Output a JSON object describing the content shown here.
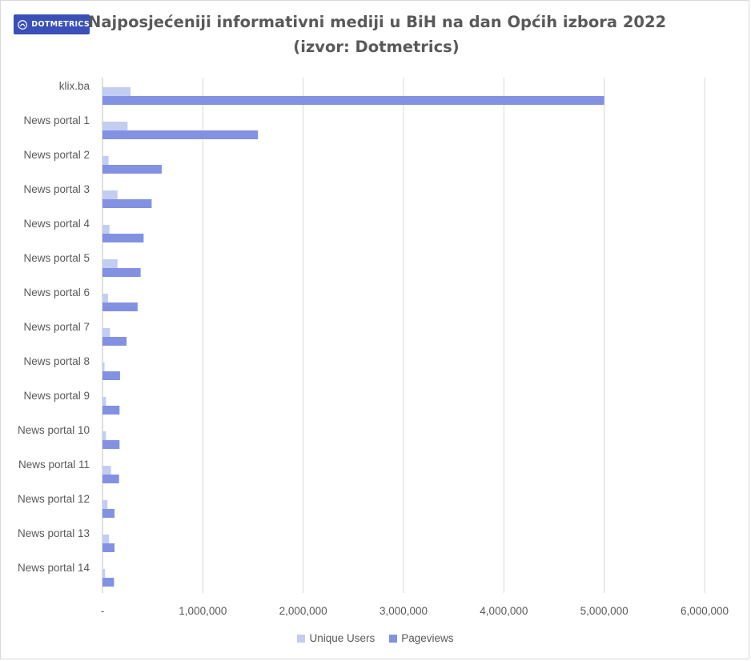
{
  "brand": {
    "logo_text": "DOTMETRICS"
  },
  "chart_data": {
    "type": "bar",
    "orientation": "horizontal",
    "title": "Najposjećeniji informativni mediji u BiH na dan Općih izbora 2022",
    "subtitle": "(izvor: Dotmetrics)",
    "categories": [
      "klix.ba",
      "News portal 1",
      "News portal 2",
      "News portal 3",
      "News portal 4",
      "News portal 5",
      "News portal 6",
      "News portal 7",
      "News portal 8",
      "News portal 9",
      "News portal 10",
      "News portal 11",
      "News portal 12",
      "News portal 13",
      "News portal 14"
    ],
    "series": [
      {
        "name": "Unique Users",
        "color": "#c3cdf2",
        "values": [
          280000,
          250000,
          60000,
          150000,
          70000,
          150000,
          55000,
          75000,
          20000,
          35000,
          35000,
          85000,
          50000,
          65000,
          25000
        ]
      },
      {
        "name": "Pageviews",
        "color": "#8391e3",
        "values": [
          5000000,
          1550000,
          590000,
          490000,
          410000,
          380000,
          350000,
          240000,
          175000,
          170000,
          170000,
          165000,
          120000,
          120000,
          115000
        ]
      }
    ],
    "xlim": [
      0,
      6000000
    ],
    "ticks": [
      0,
      1000000,
      2000000,
      3000000,
      4000000,
      5000000,
      6000000
    ],
    "tick_labels": [
      "-",
      "1,000,000",
      "2,000,000",
      "3,000,000",
      "4,000,000",
      "5,000,000",
      "6,000,000"
    ],
    "grid": true,
    "legend_position": "bottom"
  }
}
